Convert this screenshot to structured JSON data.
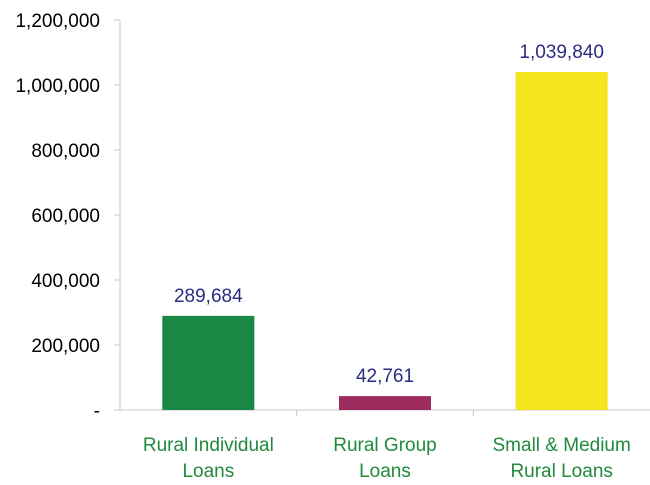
{
  "chart_data": {
    "type": "bar",
    "categories": [
      [
        "Rural Individual",
        "Loans"
      ],
      [
        "Rural Group",
        "Loans"
      ],
      [
        "Small & Medium",
        "Rural Loans"
      ]
    ],
    "values": [
      289684,
      42761,
      1039840
    ],
    "data_labels": [
      "289,684",
      "42,761",
      "1,039,840"
    ],
    "bar_colors": [
      "#1a8744",
      "#9c2c5e",
      "#f2e51b"
    ],
    "y_ticks": [
      0,
      200000,
      400000,
      600000,
      800000,
      1000000,
      1200000
    ],
    "y_tick_labels": [
      "-",
      "200,000",
      "400,000",
      "600,000",
      "800,000",
      "1,000,000",
      "1,200,000"
    ],
    "ylim": [
      0,
      1200000
    ],
    "grid": false,
    "legend": "none"
  }
}
